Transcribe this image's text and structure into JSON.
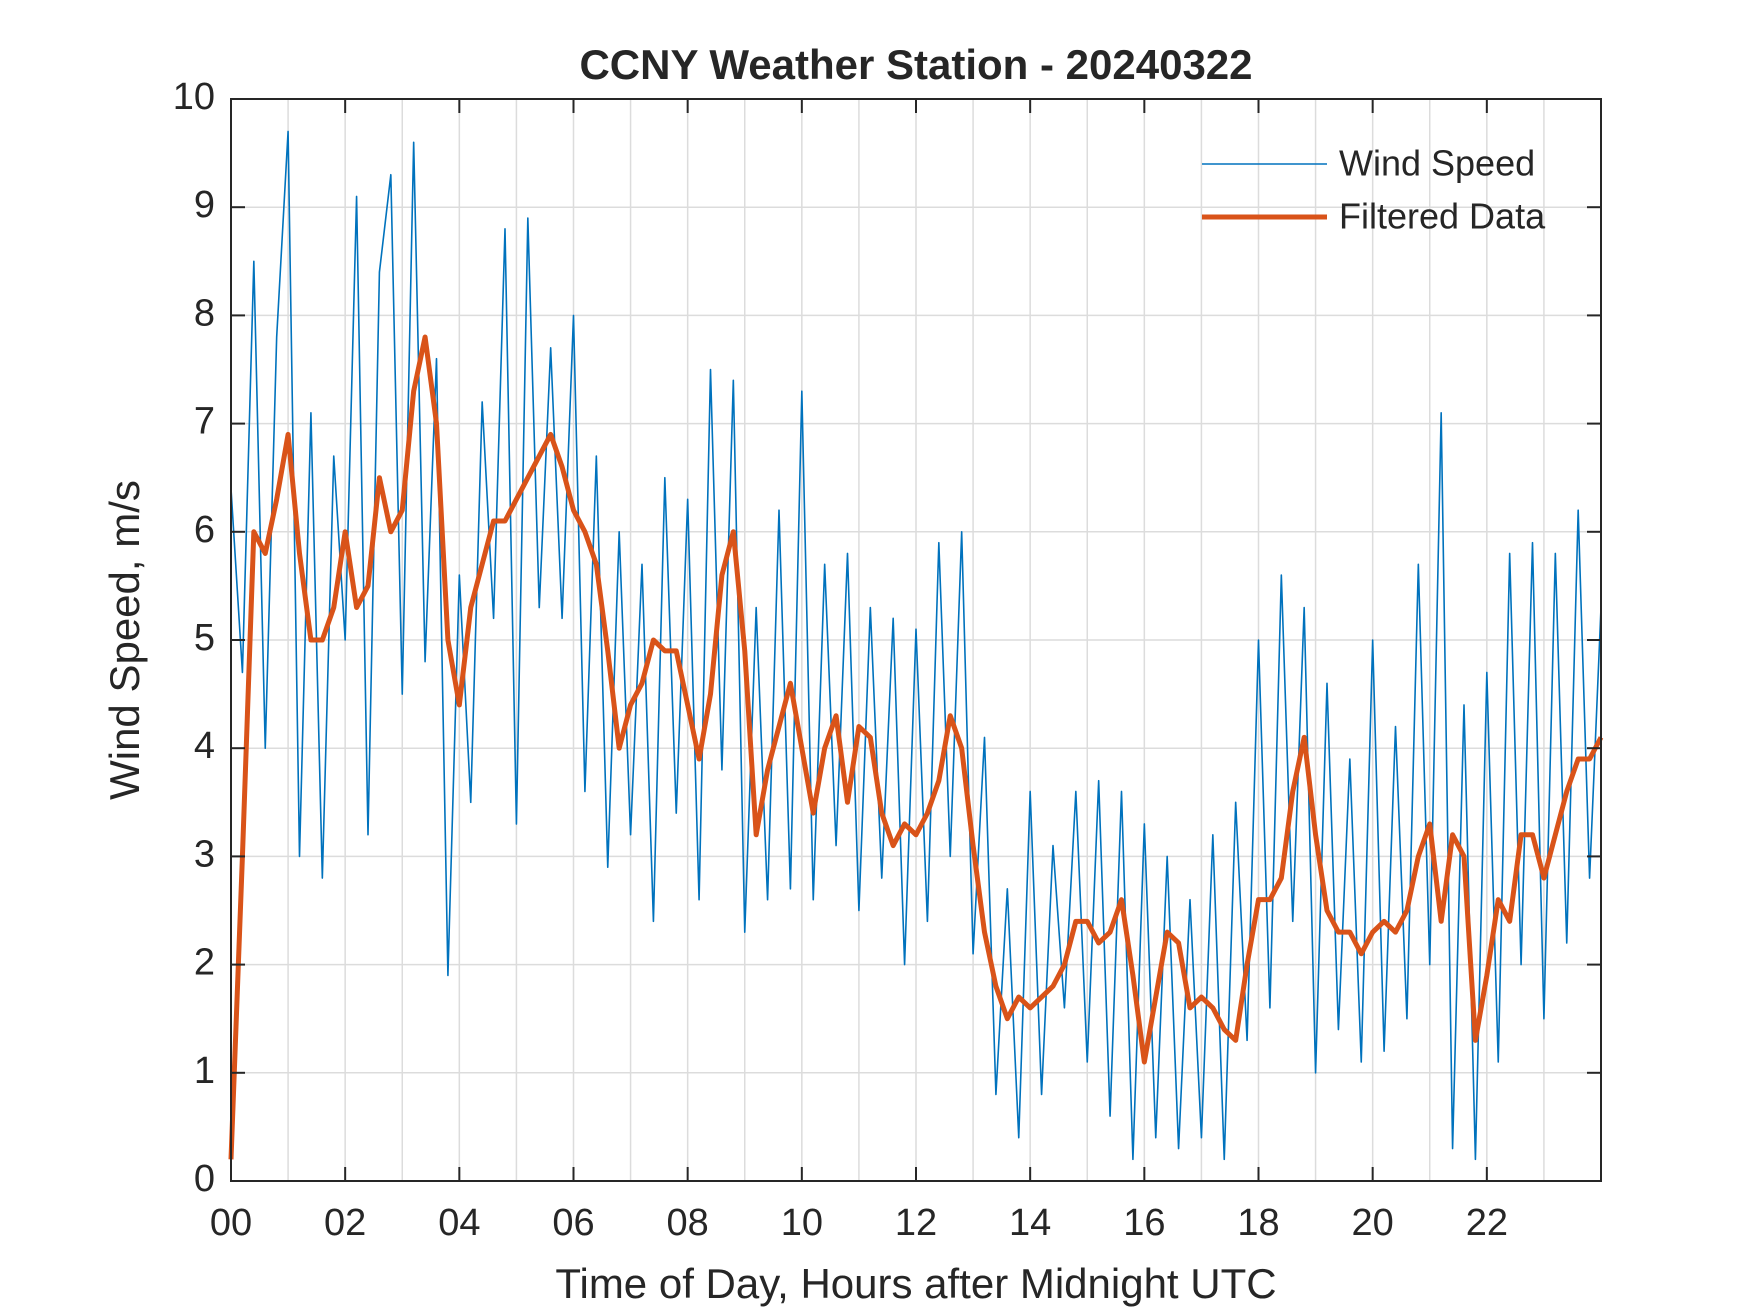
{
  "chart_data": {
    "type": "line",
    "title": "CCNY Weather Station - 20240322",
    "xlabel": "Time of Day, Hours after Midnight UTC",
    "ylabel": "Wind Speed, m/s",
    "xlim": [
      0,
      24
    ],
    "ylim": [
      0,
      10
    ],
    "xticks": [
      {
        "value": 0,
        "label": "00"
      },
      {
        "value": 2,
        "label": "02"
      },
      {
        "value": 4,
        "label": "04"
      },
      {
        "value": 6,
        "label": "06"
      },
      {
        "value": 8,
        "label": "08"
      },
      10,
      12,
      14,
      16,
      18,
      20,
      22
    ],
    "xminorticks": [
      1,
      3,
      5,
      7,
      9,
      11,
      13,
      15,
      17,
      19,
      21,
      23
    ],
    "yticks": [
      0,
      1,
      2,
      3,
      4,
      5,
      6,
      7,
      8,
      9,
      10
    ],
    "grid": true,
    "legend": "northeast",
    "x": [
      0,
      0.2,
      0.4,
      0.6,
      0.8,
      1,
      1.2,
      1.4,
      1.6,
      1.8,
      2,
      2.2,
      2.4,
      2.6,
      2.8,
      3,
      3.2,
      3.4,
      3.6,
      3.8,
      4,
      4.2,
      4.4,
      4.6,
      4.8,
      5,
      5.2,
      5.4,
      5.6,
      5.8,
      6,
      6.2,
      6.4,
      6.6,
      6.8,
      7,
      7.2,
      7.4,
      7.6,
      7.8,
      8,
      8.2,
      8.4,
      8.6,
      8.8,
      9,
      9.2,
      9.4,
      9.6,
      9.8,
      10,
      10.2,
      10.4,
      10.6,
      10.8,
      11,
      11.2,
      11.4,
      11.6,
      11.8,
      12,
      12.2,
      12.4,
      12.6,
      12.8,
      13,
      13.2,
      13.4,
      13.6,
      13.8,
      14,
      14.2,
      14.4,
      14.6,
      14.8,
      15,
      15.2,
      15.4,
      15.6,
      15.8,
      16,
      16.2,
      16.4,
      16.6,
      16.8,
      17,
      17.2,
      17.4,
      17.6,
      17.8,
      18,
      18.2,
      18.4,
      18.6,
      18.8,
      19,
      19.2,
      19.4,
      19.6,
      19.8,
      20,
      20.2,
      20.4,
      20.6,
      20.8,
      21,
      21.2,
      21.4,
      21.6,
      21.8,
      22,
      22.2,
      22.4,
      22.6,
      22.8,
      23,
      23.2,
      23.4,
      23.6,
      23.8,
      24
    ],
    "series": [
      {
        "name": "Wind Speed",
        "color": "#0072BD",
        "width": 1.6,
        "values": [
          6.4,
          4.7,
          8.5,
          4.0,
          7.8,
          9.7,
          3.0,
          7.1,
          2.8,
          6.7,
          5.0,
          9.1,
          3.2,
          8.4,
          9.3,
          4.5,
          9.6,
          4.8,
          7.6,
          1.9,
          5.6,
          3.5,
          7.2,
          5.2,
          8.8,
          3.3,
          8.9,
          5.3,
          7.7,
          5.2,
          8.0,
          3.6,
          6.7,
          2.9,
          6.0,
          3.2,
          5.7,
          2.4,
          6.5,
          3.4,
          6.3,
          2.6,
          7.5,
          3.8,
          7.4,
          2.3,
          5.3,
          2.6,
          6.2,
          2.7,
          7.3,
          2.6,
          5.7,
          3.1,
          5.8,
          2.5,
          5.3,
          2.8,
          5.2,
          2.0,
          5.1,
          2.4,
          5.9,
          3.0,
          6.0,
          2.1,
          4.1,
          0.8,
          2.7,
          0.4,
          3.6,
          0.8,
          3.1,
          1.6,
          3.6,
          1.1,
          3.7,
          0.6,
          3.6,
          0.2,
          3.3,
          0.4,
          3.0,
          0.3,
          2.6,
          0.4,
          3.2,
          0.2,
          3.5,
          1.3,
          5.0,
          1.6,
          5.6,
          2.4,
          5.3,
          1.0,
          4.6,
          1.4,
          3.9,
          1.1,
          5.0,
          1.2,
          4.2,
          1.5,
          5.7,
          2.0,
          7.1,
          0.3,
          4.4,
          0.2,
          4.7,
          1.1,
          5.8,
          2.0,
          5.9,
          1.5,
          5.8,
          2.2,
          6.2,
          2.8,
          5.3
        ]
      },
      {
        "name": "Filtered Data",
        "color": "#D95319",
        "width": 5,
        "values": [
          0.2,
          3.0,
          6.0,
          5.8,
          6.3,
          6.9,
          5.8,
          5.0,
          5.0,
          5.3,
          6.0,
          5.3,
          5.5,
          6.5,
          6.0,
          6.2,
          7.3,
          7.8,
          7.0,
          5.0,
          4.4,
          5.3,
          5.7,
          6.1,
          6.1,
          6.3,
          6.5,
          6.7,
          6.9,
          6.6,
          6.2,
          6.0,
          5.7,
          4.9,
          4.0,
          4.4,
          4.6,
          5.0,
          4.9,
          4.9,
          4.4,
          3.9,
          4.5,
          5.6,
          6.0,
          4.9,
          3.2,
          3.8,
          4.2,
          4.6,
          4.0,
          3.4,
          4.0,
          4.3,
          3.5,
          4.2,
          4.1,
          3.4,
          3.1,
          3.3,
          3.2,
          3.4,
          3.7,
          4.3,
          4.0,
          3.1,
          2.3,
          1.8,
          1.5,
          1.7,
          1.6,
          1.7,
          1.8,
          2.0,
          2.4,
          2.4,
          2.2,
          2.3,
          2.6,
          1.9,
          1.1,
          1.7,
          2.3,
          2.2,
          1.6,
          1.7,
          1.6,
          1.4,
          1.3,
          2.0,
          2.6,
          2.6,
          2.8,
          3.6,
          4.1,
          3.2,
          2.5,
          2.3,
          2.3,
          2.1,
          2.3,
          2.4,
          2.3,
          2.5,
          3.0,
          3.3,
          2.4,
          3.2,
          3.0,
          1.3,
          1.9,
          2.6,
          2.4,
          3.2,
          3.2,
          2.8,
          3.2,
          3.6,
          3.9,
          3.9,
          4.1
        ]
      }
    ]
  }
}
